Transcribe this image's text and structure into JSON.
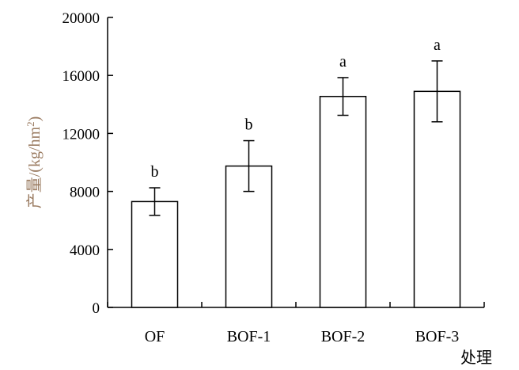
{
  "chart_data": {
    "type": "bar",
    "categories": [
      "OF",
      "BOF-1",
      "BOF-2",
      "BOF-3"
    ],
    "values": [
      7300,
      9750,
      14550,
      14900
    ],
    "errors": [
      950,
      1750,
      1300,
      2100
    ],
    "significance_labels": [
      "b",
      "b",
      "a",
      "a"
    ],
    "title": "",
    "xlabel": "处理",
    "ylabel": "产量/(kg/hm²)",
    "ylabel_parts": {
      "prefix": "产量/(kg/hm",
      "superscript": "2",
      "suffix": ")"
    },
    "ylim": [
      0,
      20000
    ],
    "yticks": [
      0,
      4000,
      8000,
      12000,
      16000,
      20000
    ],
    "grid": false,
    "legend": "none",
    "bar_fill": "#ffffff",
    "bar_stroke": "#000000",
    "ylabel_color": "#9b7c62"
  }
}
